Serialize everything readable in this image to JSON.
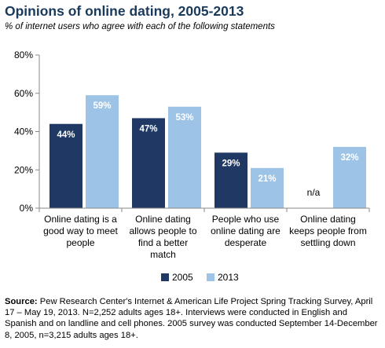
{
  "title": "Opinions of online dating, 2005-2013",
  "subtitle": "% of internet users who agree with each of the following statements",
  "chart_data": {
    "type": "bar",
    "categories": [
      [
        "Online dating is a",
        "good way to meet",
        "people"
      ],
      [
        "Online dating",
        "allows people to",
        "find a better",
        "match"
      ],
      [
        "People who use",
        "online dating are",
        "desperate"
      ],
      [
        "Online dating",
        "keeps people from",
        "settling down"
      ]
    ],
    "series": [
      {
        "name": "2005",
        "color": "#1f3864",
        "values": [
          44,
          47,
          29,
          null
        ],
        "labels": [
          "44%",
          "47%",
          "29%",
          "n/a"
        ]
      },
      {
        "name": "2013",
        "color": "#9dc3e6",
        "values": [
          59,
          53,
          21,
          32
        ],
        "labels": [
          "59%",
          "53%",
          "21%",
          "32%"
        ]
      }
    ],
    "ylim": [
      0,
      80
    ],
    "yticks": [
      {
        "value": 0,
        "label": "0%"
      },
      {
        "value": 20,
        "label": "20%"
      },
      {
        "value": 40,
        "label": "40%"
      },
      {
        "value": 60,
        "label": "60%"
      },
      {
        "value": 80,
        "label": "80%"
      }
    ],
    "grid": false,
    "legend": "bottom-center"
  },
  "source": {
    "label": "Source:",
    "text": " Pew Research Center's Internet & American Life Project Spring Tracking Survey, April 17 – May 19, 2013. N=2,252 adults ages 18+. Interviews were conducted in English and Spanish and on landline and cell phones.  2005 survey was conducted September 14-December 8, 2005, n=3,215 adults ages 18+."
  }
}
